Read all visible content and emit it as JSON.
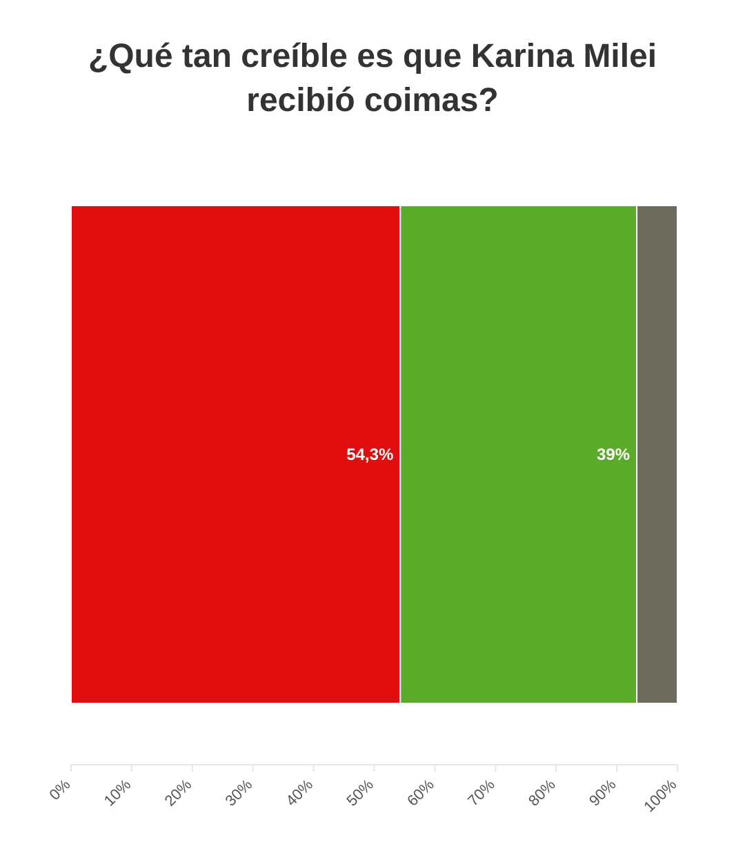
{
  "chart_data": {
    "type": "bar",
    "stacked": true,
    "orientation": "horizontal",
    "title": "¿Qué tan creíble es que Karina Milei recibió coimas?",
    "categories": [
      ""
    ],
    "series": [
      {
        "value": 54.3,
        "label": "54,3%",
        "color": "#e00e0e"
      },
      {
        "value": 39,
        "label": "39%",
        "color": "#5aab2a"
      },
      {
        "value": 6.7,
        "label": "",
        "color": "#6b6a5d"
      }
    ],
    "xlim": [
      0,
      100
    ],
    "ticks": [
      0,
      10,
      20,
      30,
      40,
      50,
      60,
      70,
      80,
      90,
      100
    ],
    "tick_labels": [
      "0%",
      "10%",
      "20%",
      "30%",
      "40%",
      "50%",
      "60%",
      "70%",
      "80%",
      "90%",
      "100%"
    ],
    "grid": false,
    "legend": "none"
  }
}
